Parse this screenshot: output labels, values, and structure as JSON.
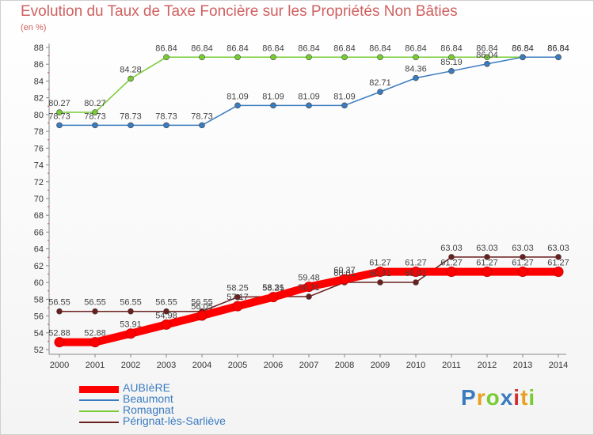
{
  "title": "Evolution du Taux de Taxe Foncière sur les Propriétés Non Bâties",
  "unit": "(en %)",
  "logo": "Proxiti",
  "chart_data": {
    "type": "line",
    "x": [
      "2000",
      "2001",
      "2002",
      "2003",
      "2004",
      "2005",
      "2006",
      "2007",
      "2008",
      "2009",
      "2010",
      "2011",
      "2012",
      "2013",
      "2014"
    ],
    "ylim": [
      52,
      88
    ],
    "yticks": [
      52,
      54,
      56,
      58,
      60,
      62,
      64,
      66,
      68,
      70,
      72,
      74,
      76,
      78,
      80,
      82,
      84,
      86,
      88
    ],
    "grid": false,
    "legend_position": "bottom-left",
    "series": [
      {
        "name": "AUBIèRE",
        "color": "#ff0000",
        "values": [
          52.88,
          52.88,
          53.91,
          54.98,
          56.05,
          57.17,
          58.25,
          59.48,
          60.37,
          61.27,
          61.27,
          61.27,
          61.27,
          61.27,
          61.27
        ],
        "labels": [
          "52.88",
          "52.88",
          "53.91",
          "54.98",
          "56.05",
          "57.17",
          "58.25",
          "59.48",
          "60.37",
          "61.27",
          "61.27",
          "61.27",
          "61.27",
          "61.27",
          "61.27"
        ]
      },
      {
        "name": "Beaumont",
        "color": "#3a7bbf",
        "values": [
          78.73,
          78.73,
          78.73,
          78.73,
          78.73,
          81.09,
          81.09,
          81.09,
          81.09,
          82.71,
          84.36,
          85.19,
          86.04,
          86.84,
          86.84
        ],
        "labels": [
          "78.73",
          "78.73",
          "78.73",
          "78.73",
          "78.73",
          "81.09",
          "81.09",
          "81.09",
          "81.09",
          "82.71",
          "84.36",
          "85.19",
          "86.04",
          "86.84",
          "86.84"
        ]
      },
      {
        "name": "Romagnat",
        "color": "#77cc33",
        "values": [
          80.27,
          80.27,
          84.28,
          86.84,
          86.84,
          86.84,
          86.84,
          86.84,
          86.84,
          86.84,
          86.84,
          86.84,
          86.84,
          86.84,
          86.84
        ],
        "labels": [
          "80.27",
          "80.27",
          "84.28",
          "86.84",
          "86.84",
          "86.84",
          "86.84",
          "86.84",
          "86.84",
          "86.84",
          "86.84",
          "86.84",
          "86.84",
          "86.84",
          "86.84"
        ]
      },
      {
        "name": "Pérignat-lès-Sarliève",
        "color": "#6b1f1f",
        "values": [
          56.55,
          56.55,
          56.55,
          56.55,
          56.55,
          58.25,
          58.31,
          58.31,
          60.01,
          60.01,
          60.01,
          63.03,
          63.03,
          63.03,
          63.03
        ],
        "labels": [
          "56.55",
          "56.55",
          "56.55",
          "56.55",
          "56.55",
          "58.25",
          "58.31",
          "58.31",
          "60.01",
          "60.01",
          "60.01",
          "63.03",
          "63.03",
          "63.03",
          "63.03"
        ]
      }
    ]
  }
}
